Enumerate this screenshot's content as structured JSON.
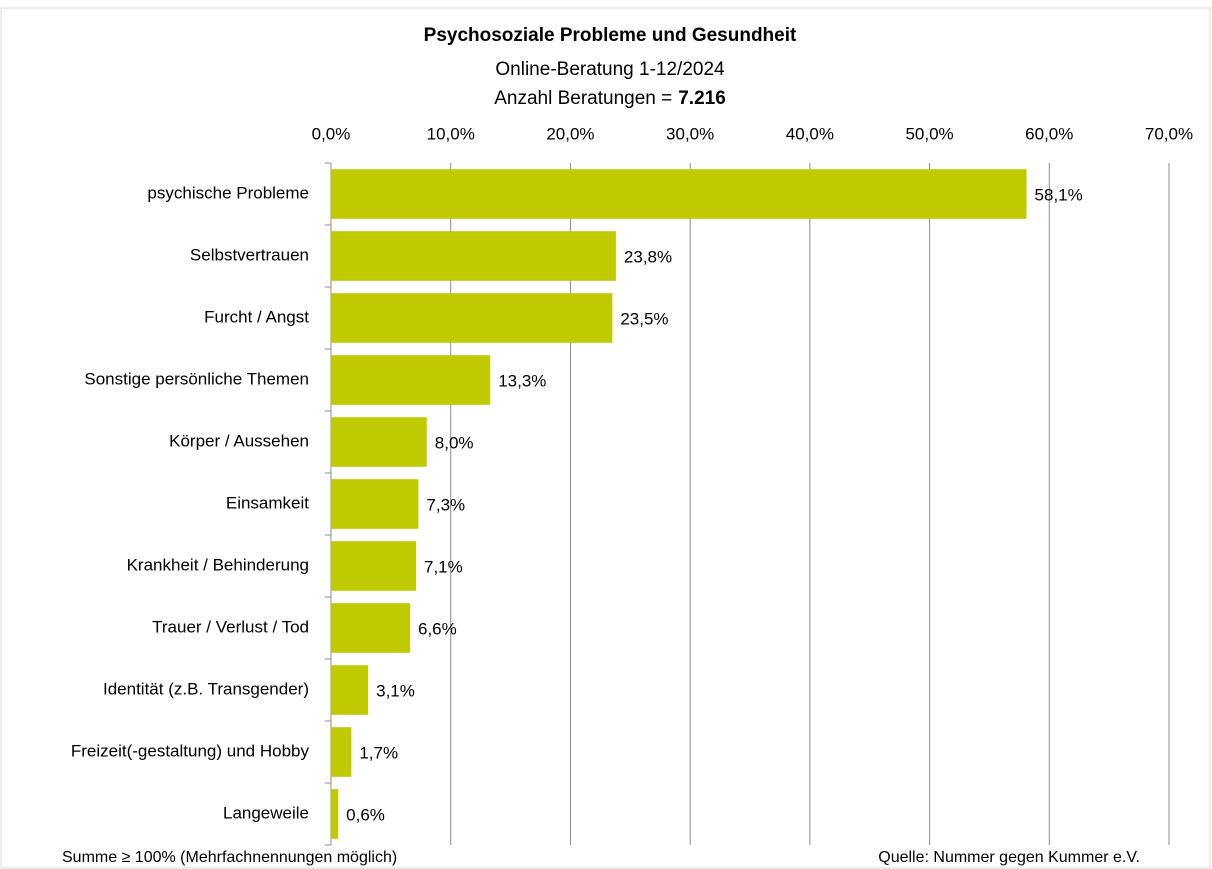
{
  "chart_data": {
    "type": "hbar",
    "title": "Psychosoziale Probleme und Gesundheit",
    "subtitle": "Online-Beratung 1-12/2024",
    "count_label": "Anzahl Beratungen =",
    "count": "7.216",
    "categories": [
      "psychische Probleme",
      "Selbstvertrauen",
      "Furcht / Angst",
      "Sonstige persönliche Themen",
      "Körper / Aussehen",
      "Einsamkeit",
      "Krankheit / Behinderung",
      "Trauer / Verlust / Tod",
      "Identität (z.B. Transgender)",
      "Freizeit(-gestaltung) und Hobby",
      "Langeweile"
    ],
    "values": [
      58.1,
      23.8,
      23.5,
      13.3,
      8.0,
      7.3,
      7.1,
      6.6,
      3.1,
      1.7,
      0.6
    ],
    "value_labels": [
      "58,1%",
      "23,8%",
      "23,5%",
      "13,3%",
      "8,0%",
      "7,3%",
      "7,1%",
      "6,6%",
      "3,1%",
      "1,7%",
      "0,6%"
    ],
    "color": "#bfca00",
    "xlim": [
      0,
      70
    ],
    "xticks": [
      {
        "value": 0,
        "label": "0,0%"
      },
      {
        "value": 10,
        "label": "10,0%"
      },
      {
        "value": 20,
        "label": "20,0%"
      },
      {
        "value": 30,
        "label": "30,0%"
      },
      {
        "value": 40,
        "label": "40,0%"
      },
      {
        "value": 50,
        "label": "50,0%"
      },
      {
        "value": 60,
        "label": "60,0%"
      },
      {
        "value": 70,
        "label": "70,0%"
      }
    ],
    "grid": true,
    "note_left": "Summe ≥ 100% (Mehrfachnennungen möglich)",
    "note_right": "Quelle: Nummer gegen Kummer e.V."
  }
}
